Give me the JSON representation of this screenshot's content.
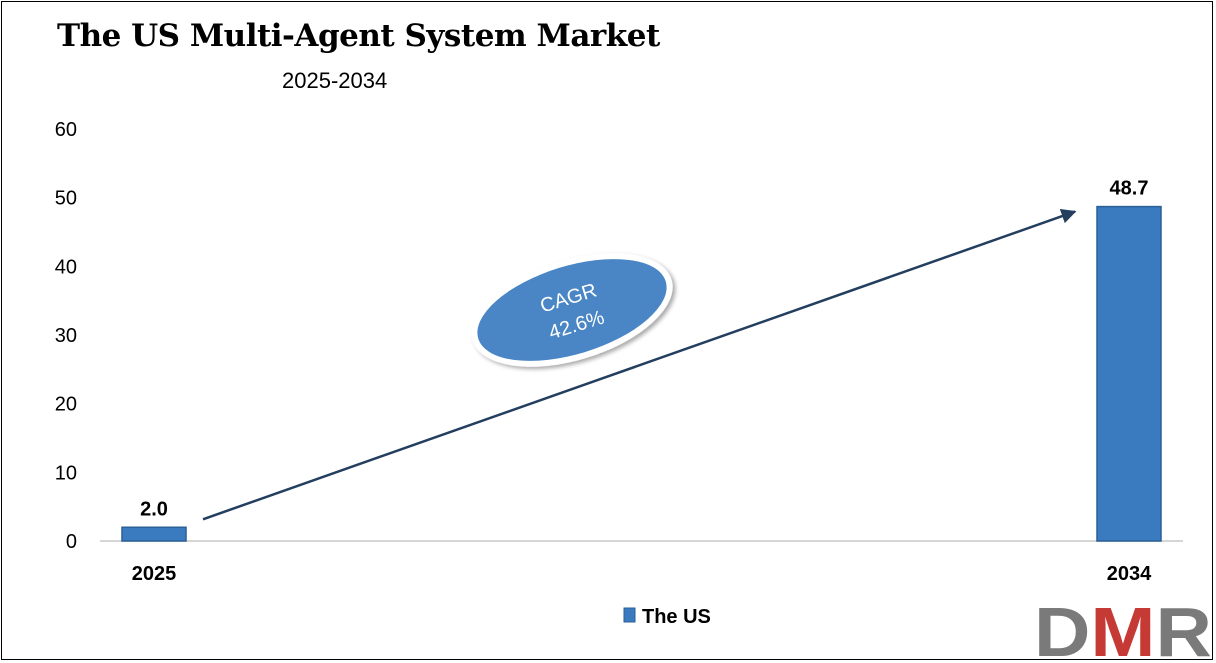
{
  "chart_data": {
    "type": "bar",
    "title": "The US Multi-Agent System Market",
    "subtitle": "2025-2034",
    "categories": [
      "2025",
      "2034"
    ],
    "series": [
      {
        "name": "The US",
        "values": [
          2.0,
          48.7
        ],
        "data_labels": [
          "2.0",
          "48.7"
        ]
      }
    ],
    "ylim": [
      0,
      60
    ],
    "yticks": [
      "0",
      "10",
      "20",
      "30",
      "40",
      "50",
      "60"
    ],
    "xlabel": "",
    "ylabel": "",
    "grid": false,
    "legend_position": "bottom",
    "annotation": {
      "lines": [
        "CAGR",
        "42.6%"
      ]
    },
    "colors": {
      "bar": "#3a7bbf",
      "bar_dark": "#2a5f98",
      "arrow": "#233e5e",
      "ellipse": "#4a86c5"
    }
  },
  "logo": {
    "text": "DMR",
    "colors": {
      "d": "#7a7a7a",
      "m": "#c63a36",
      "r": "#7a7a7a"
    }
  }
}
